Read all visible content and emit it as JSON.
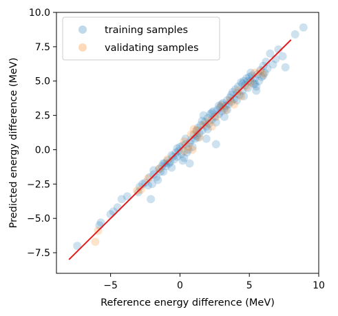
{
  "chart_data": {
    "type": "scatter",
    "xlabel": "Reference energy difference (MeV)",
    "ylabel": "Predicted energy difference (MeV)",
    "xlim": [
      -8.9,
      10.0
    ],
    "ylim": [
      -9.0,
      10.0
    ],
    "xticks": [
      -5,
      0,
      5,
      10
    ],
    "yticks": [
      -7.5,
      -5.0,
      -2.5,
      0.0,
      2.5,
      5.0,
      7.5,
      10.0
    ],
    "xtick_labels": [
      "−5",
      "0",
      "5",
      "10"
    ],
    "ytick_labels": [
      "−7.5",
      "−5.0",
      "−2.5",
      "0.0",
      "2.5",
      "5.0",
      "7.5",
      "10.0"
    ],
    "grid": false,
    "legend_position": "top-left",
    "series": [
      {
        "name": "training samples",
        "color": "#1f77b4",
        "alpha": 0.22,
        "points": [
          [
            -7.4,
            -7.0
          ],
          [
            -5.8,
            -5.5
          ],
          [
            -5.7,
            -5.3
          ],
          [
            -5.0,
            -4.7
          ],
          [
            -4.8,
            -4.5
          ],
          [
            -4.5,
            -4.2
          ],
          [
            -4.2,
            -3.6
          ],
          [
            -3.8,
            -3.4
          ],
          [
            -3.0,
            -3.1
          ],
          [
            -2.9,
            -2.7
          ],
          [
            -2.7,
            -2.5
          ],
          [
            -2.5,
            -2.4
          ],
          [
            -2.3,
            -2.6
          ],
          [
            -2.1,
            -3.6
          ],
          [
            -2.0,
            -2.5
          ],
          [
            -1.9,
            -1.8
          ],
          [
            -1.7,
            -2.0
          ],
          [
            -1.6,
            -2.2
          ],
          [
            -1.5,
            -1.4
          ],
          [
            -1.4,
            -1.6
          ],
          [
            -1.3,
            -1.2
          ],
          [
            -1.2,
            -1.6
          ],
          [
            -1.1,
            -1.0
          ],
          [
            -1.0,
            -1.2
          ],
          [
            -0.9,
            -0.8
          ],
          [
            -0.8,
            -1.0
          ],
          [
            -0.7,
            -0.9
          ],
          [
            -0.6,
            -0.4
          ],
          [
            -0.5,
            -0.5
          ],
          [
            -0.4,
            -0.7
          ],
          [
            -0.3,
            -0.2
          ],
          [
            -0.2,
            -0.5
          ],
          [
            -0.1,
            -0.1
          ],
          [
            0.0,
            0.2
          ],
          [
            0.1,
            -0.3
          ],
          [
            0.2,
            0.3
          ],
          [
            0.2,
            -0.8
          ],
          [
            0.3,
            -0.6
          ],
          [
            0.4,
            0.4
          ],
          [
            0.5,
            -0.2
          ],
          [
            0.6,
            0.0
          ],
          [
            0.7,
            0.5
          ],
          [
            0.8,
            0.7
          ],
          [
            0.9,
            0.2
          ],
          [
            1.0,
            1.1
          ],
          [
            1.1,
            0.8
          ],
          [
            1.2,
            1.0
          ],
          [
            1.3,
            1.6
          ],
          [
            1.4,
            1.2
          ],
          [
            1.5,
            1.8
          ],
          [
            1.6,
            1.4
          ],
          [
            1.7,
            2.5
          ],
          [
            1.8,
            2.0
          ],
          [
            1.9,
            1.7
          ],
          [
            2.0,
            2.3
          ],
          [
            2.1,
            1.9
          ],
          [
            2.2,
            2.6
          ],
          [
            2.3,
            2.2
          ],
          [
            2.4,
            2.8
          ],
          [
            2.5,
            2.4
          ],
          [
            2.6,
            2.0
          ],
          [
            2.7,
            2.9
          ],
          [
            2.8,
            2.6
          ],
          [
            2.9,
            3.1
          ],
          [
            3.0,
            2.8
          ],
          [
            3.1,
            3.4
          ],
          [
            3.2,
            3.0
          ],
          [
            3.3,
            3.2
          ],
          [
            3.4,
            3.6
          ],
          [
            3.5,
            3.3
          ],
          [
            3.6,
            3.8
          ],
          [
            3.7,
            3.5
          ],
          [
            3.8,
            4.2
          ],
          [
            3.9,
            3.7
          ],
          [
            4.0,
            4.4
          ],
          [
            4.1,
            4.1
          ],
          [
            4.2,
            4.6
          ],
          [
            4.3,
            4.0
          ],
          [
            4.4,
            4.9
          ],
          [
            4.5,
            4.3
          ],
          [
            4.6,
            5.0
          ],
          [
            4.7,
            4.7
          ],
          [
            4.8,
            5.2
          ],
          [
            4.9,
            4.5
          ],
          [
            5.0,
            5.3
          ],
          [
            5.1,
            5.0
          ],
          [
            5.2,
            5.4
          ],
          [
            5.3,
            4.8
          ],
          [
            5.4,
            5.2
          ],
          [
            5.5,
            4.6
          ],
          [
            5.6,
            5.5
          ],
          [
            5.7,
            5.0
          ],
          [
            5.8,
            5.8
          ],
          [
            5.9,
            5.3
          ],
          [
            6.0,
            6.1
          ],
          [
            6.1,
            5.6
          ],
          [
            6.2,
            6.4
          ],
          [
            6.3,
            5.9
          ],
          [
            6.5,
            7.0
          ],
          [
            6.7,
            6.2
          ],
          [
            6.9,
            6.6
          ],
          [
            7.1,
            7.3
          ],
          [
            7.4,
            6.8
          ],
          [
            7.6,
            6.0
          ],
          [
            8.3,
            8.4
          ],
          [
            8.9,
            8.9
          ],
          [
            1.9,
            0.8
          ],
          [
            2.6,
            0.4
          ],
          [
            3.2,
            2.4
          ],
          [
            4.6,
            3.9
          ],
          [
            5.5,
            4.3
          ],
          [
            0.7,
            -1.0
          ],
          [
            -0.6,
            -1.3
          ],
          [
            -1.9,
            -1.5
          ],
          [
            4.9,
            5.0
          ],
          [
            4.1,
            3.6
          ],
          [
            3.7,
            4.0
          ],
          [
            2.3,
            2.7
          ],
          [
            1.2,
            1.4
          ],
          [
            0.4,
            0.8
          ],
          [
            5.4,
            4.8
          ],
          [
            6.0,
            5.4
          ],
          [
            3.0,
            3.3
          ],
          [
            2.0,
            1.5
          ],
          [
            1.6,
            2.1
          ],
          [
            -0.2,
            0.1
          ],
          [
            4.5,
            4.8
          ],
          [
            5.1,
            5.6
          ],
          [
            3.4,
            2.9
          ],
          [
            2.8,
            3.2
          ],
          [
            1.3,
            0.9
          ],
          [
            -1.2,
            -1.0
          ],
          [
            -2.2,
            -2.0
          ]
        ]
      },
      {
        "name": "validating samples",
        "color": "#ff7f0e",
        "alpha": 0.22,
        "points": [
          [
            -6.1,
            -6.7
          ],
          [
            -5.9,
            -5.9
          ],
          [
            -2.8,
            -2.9
          ],
          [
            -2.3,
            -2.1
          ],
          [
            -1.5,
            -1.4
          ],
          [
            -0.9,
            -0.7
          ],
          [
            0.3,
            -0.1
          ],
          [
            0.6,
            0.2
          ],
          [
            0.9,
            0.0
          ],
          [
            1.2,
            1.4
          ],
          [
            1.4,
            0.9
          ],
          [
            1.7,
            1.8
          ],
          [
            2.1,
            2.1
          ],
          [
            2.3,
            1.7
          ],
          [
            2.6,
            2.4
          ],
          [
            3.0,
            3.2
          ],
          [
            3.3,
            2.9
          ],
          [
            3.6,
            3.6
          ],
          [
            3.9,
            3.3
          ],
          [
            4.2,
            4.3
          ],
          [
            4.4,
            3.9
          ],
          [
            4.8,
            4.6
          ],
          [
            5.1,
            4.9
          ],
          [
            5.4,
            5.6
          ],
          [
            5.8,
            5.7
          ],
          [
            6.0,
            5.5
          ],
          [
            -3.1,
            -3.0
          ],
          [
            1.0,
            1.5
          ],
          [
            0.8,
            1.1
          ],
          [
            0.3,
            0.6
          ]
        ]
      }
    ],
    "reference_line": {
      "points": [
        [
          -8.0,
          -8.0
        ],
        [
          8.0,
          8.0
        ]
      ],
      "color": "#e31a1c"
    }
  }
}
